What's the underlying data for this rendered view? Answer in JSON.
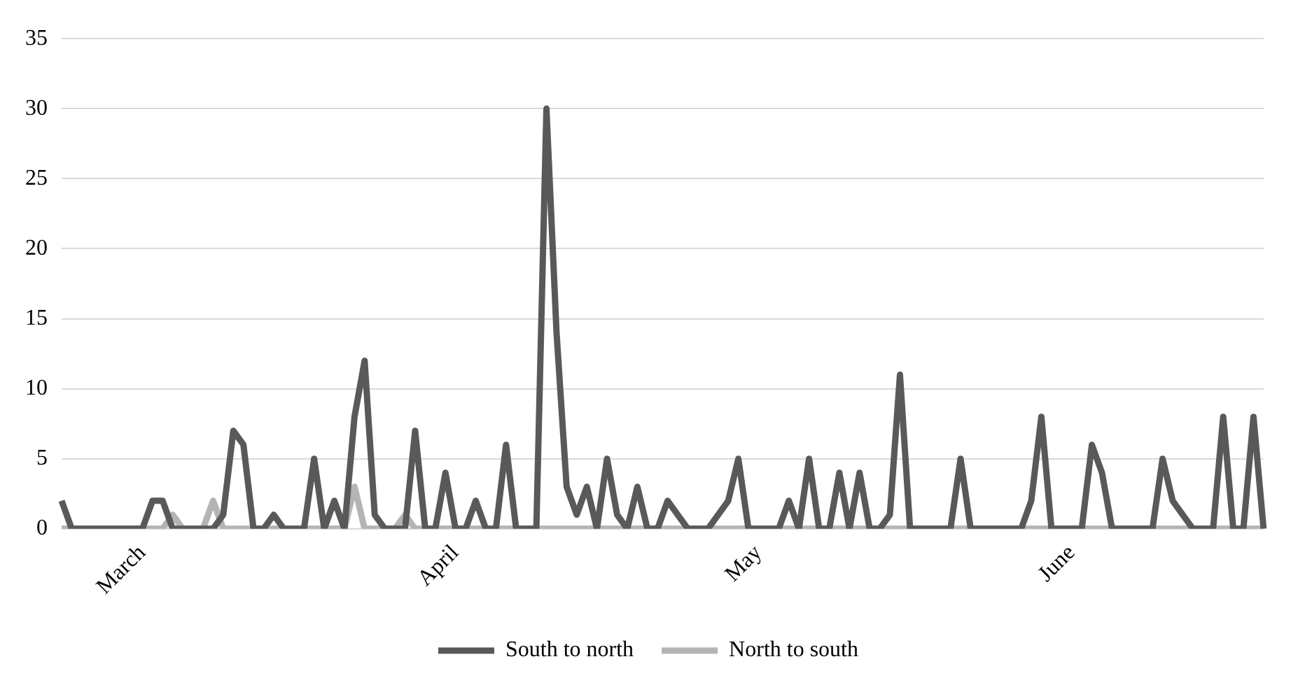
{
  "chart_data": {
    "type": "line",
    "categories": [
      null,
      null,
      null,
      null,
      null,
      null,
      null,
      null,
      "March",
      null,
      null,
      null,
      null,
      null,
      null,
      null,
      null,
      null,
      null,
      null,
      null,
      null,
      null,
      null,
      null,
      null,
      null,
      null,
      null,
      null,
      null,
      null,
      null,
      null,
      null,
      null,
      null,
      null,
      null,
      "April",
      null,
      null,
      null,
      null,
      null,
      null,
      null,
      null,
      null,
      null,
      null,
      null,
      null,
      null,
      null,
      null,
      null,
      null,
      null,
      null,
      null,
      null,
      null,
      null,
      null,
      null,
      null,
      null,
      null,
      "May",
      null,
      null,
      null,
      null,
      null,
      null,
      null,
      null,
      null,
      null,
      null,
      null,
      null,
      null,
      null,
      null,
      null,
      null,
      null,
      null,
      null,
      null,
      null,
      null,
      null,
      null,
      null,
      null,
      null,
      null,
      "June",
      null,
      null,
      null,
      null,
      null,
      null,
      null,
      null,
      null,
      null,
      null,
      null,
      null,
      null,
      null,
      null,
      null,
      null,
      null
    ],
    "series": [
      {
        "name": "South to north",
        "color": "#595959",
        "values": [
          2,
          0,
          0,
          0,
          0,
          0,
          0,
          0,
          0,
          2,
          2,
          0,
          0,
          0,
          0,
          0,
          1,
          7,
          6,
          0,
          0,
          1,
          0,
          0,
          0,
          5,
          0,
          2,
          0,
          8,
          12,
          1,
          0,
          0,
          0,
          7,
          0,
          0,
          4,
          0,
          0,
          2,
          0,
          0,
          6,
          0,
          0,
          0,
          30,
          14,
          3,
          1,
          3,
          0,
          5,
          1,
          0,
          3,
          0,
          0,
          2,
          1,
          0,
          0,
          0,
          1,
          2,
          5,
          0,
          0,
          0,
          0,
          2,
          0,
          5,
          0,
          0,
          4,
          0,
          4,
          0,
          0,
          1,
          11,
          0,
          0,
          0,
          0,
          0,
          5,
          0,
          0,
          0,
          0,
          0,
          0,
          2,
          8,
          0,
          0,
          0,
          0,
          6,
          4,
          0,
          0,
          0,
          0,
          0,
          5,
          2,
          1,
          0,
          0,
          0,
          8,
          0,
          0,
          8,
          0
        ]
      },
      {
        "name": "North to south",
        "color": "#b4b4b4",
        "values": [
          0,
          0,
          0,
          0,
          0,
          0,
          0,
          0,
          0,
          0,
          0,
          1,
          0,
          0,
          0,
          2,
          0,
          0,
          0,
          0,
          0,
          0,
          0,
          0,
          0,
          0,
          0,
          0,
          0,
          3,
          0,
          0,
          0,
          0,
          1,
          0,
          0,
          0,
          0,
          0,
          0,
          0,
          0,
          0,
          0,
          0,
          0,
          0,
          0,
          0,
          0,
          0,
          0,
          0,
          0,
          0,
          0,
          0,
          0,
          0,
          0,
          0,
          0,
          0,
          0,
          0,
          0,
          0,
          0,
          0,
          0,
          0,
          0,
          0,
          0,
          0,
          0,
          0,
          0,
          0,
          0,
          0,
          0,
          0,
          0,
          0,
          0,
          0,
          0,
          0,
          0,
          0,
          0,
          0,
          0,
          0,
          0,
          0,
          0,
          0,
          0,
          0,
          0,
          0,
          0,
          0,
          0,
          0,
          0,
          0,
          0,
          0,
          0,
          0,
          0,
          0,
          0,
          0,
          0,
          0
        ]
      }
    ],
    "ylim": [
      0,
      35
    ],
    "yticks": [
      0,
      5,
      10,
      15,
      20,
      25,
      30,
      35
    ],
    "grid": "y",
    "legend": "bottom",
    "marker": "none",
    "line_style": "solid"
  }
}
